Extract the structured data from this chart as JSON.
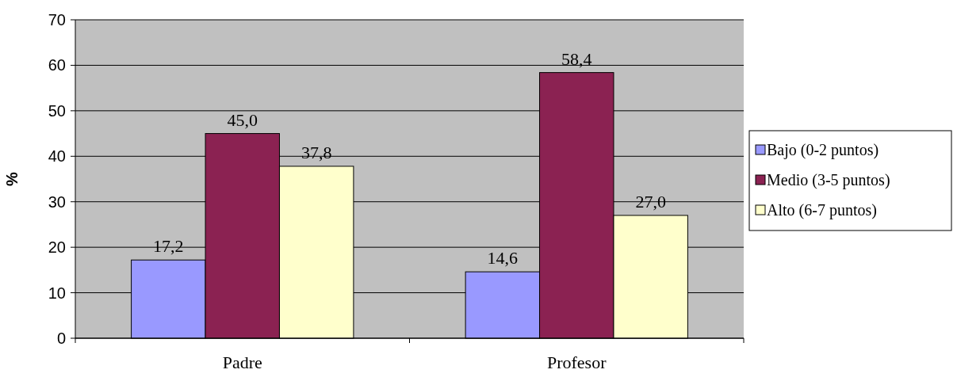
{
  "chart_data": {
    "type": "bar",
    "ylabel": "%",
    "categories": [
      "Padre",
      "Profesor"
    ],
    "series": [
      {
        "name": "Bajo (0-2 puntos)",
        "color": "#9999ff",
        "values": [
          17.2,
          14.6
        ],
        "value_labels": [
          "17,2",
          "14,6"
        ]
      },
      {
        "name": "Medio (3-5 puntos)",
        "color": "#8b2252",
        "values": [
          45.0,
          58.4
        ],
        "value_labels": [
          "45,0",
          "58,4"
        ]
      },
      {
        "name": "Alto (6-7 puntos)",
        "color": "#ffffcc",
        "values": [
          37.8,
          27.0
        ],
        "value_labels": [
          "37,8",
          "27,0"
        ]
      }
    ],
    "ylim": [
      0,
      70
    ],
    "yticks": [
      0,
      10,
      20,
      30,
      40,
      50,
      60,
      70
    ],
    "grid": "y",
    "legend": "right"
  }
}
